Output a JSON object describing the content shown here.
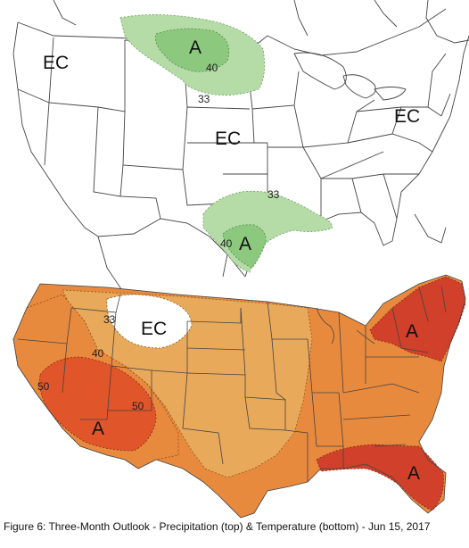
{
  "caption": "Figure 6: Three-Month Outlook - Precipitation (top) & Temperature (bottom) - Jun 15, 2017",
  "precipitation_map": {
    "labels": {
      "ec_west": "EC",
      "ec_central": "EC",
      "ec_east": "EC",
      "a_north": "A",
      "a_south": "A"
    },
    "contour_labels": {
      "north_40": "40",
      "north_33": "33",
      "south_33": "33",
      "south_40": "40"
    },
    "colors": {
      "above_33": "#b5dba7",
      "above_40": "#8cc97f",
      "land": "#ffffff",
      "borders": "#444444"
    }
  },
  "temperature_map": {
    "labels": {
      "ec_north": "EC",
      "a_southwest": "A",
      "a_northeast": "A",
      "a_southeast": "A"
    },
    "contour_labels": {
      "c33": "33",
      "c40": "40",
      "c50_west": "50",
      "c50_center": "50"
    },
    "colors": {
      "above_33": "#e8a95a",
      "above_40": "#e88a3e",
      "above_50": "#e0552a",
      "above_60": "#d0402a",
      "borders": "#444444"
    }
  }
}
